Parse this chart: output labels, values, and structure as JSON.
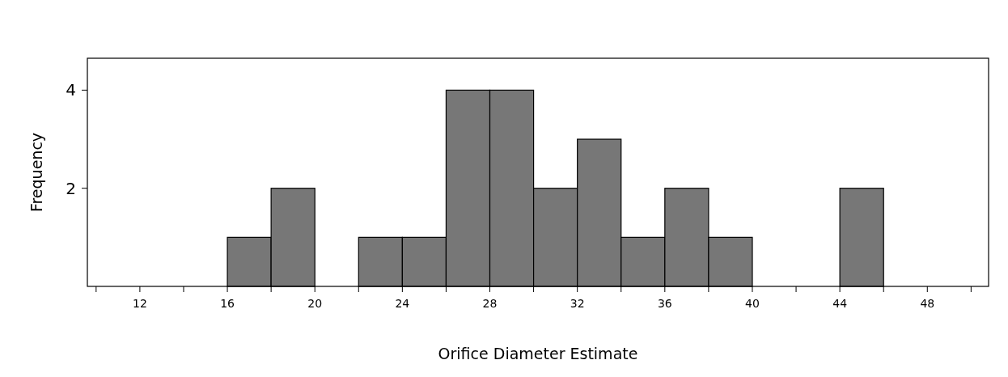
{
  "chart_data": {
    "type": "histogram",
    "xlabel": "Orifice Diameter Estimate",
    "ylabel": "Frequency",
    "bins": [
      16,
      18,
      20,
      22,
      24,
      26,
      28,
      30,
      32,
      34,
      36,
      38,
      40,
      42,
      44,
      46
    ],
    "values": [
      1,
      2,
      0,
      1,
      1,
      4,
      4,
      2,
      3,
      1,
      2,
      1,
      0,
      0,
      2
    ],
    "color": "#777777",
    "xlim": [
      9.6,
      50.8
    ],
    "xticks": [
      {
        "value": 10,
        "label": null
      },
      12,
      {
        "value": 14,
        "label": null
      },
      16,
      {
        "value": 18,
        "label": null
      },
      20,
      {
        "value": 22,
        "label": null
      },
      24,
      {
        "value": 26,
        "label": null
      },
      28,
      {
        "value": 30,
        "label": null
      },
      32,
      {
        "value": 34,
        "label": null
      },
      36,
      {
        "value": 38,
        "label": null
      },
      40,
      {
        "value": 42,
        "label": null
      },
      44,
      {
        "value": 46,
        "label": null
      },
      48,
      {
        "value": 50,
        "label": null
      }
    ],
    "ylim": [
      0,
      4.65
    ],
    "yticks": [
      2,
      4
    ],
    "grid": false
  }
}
